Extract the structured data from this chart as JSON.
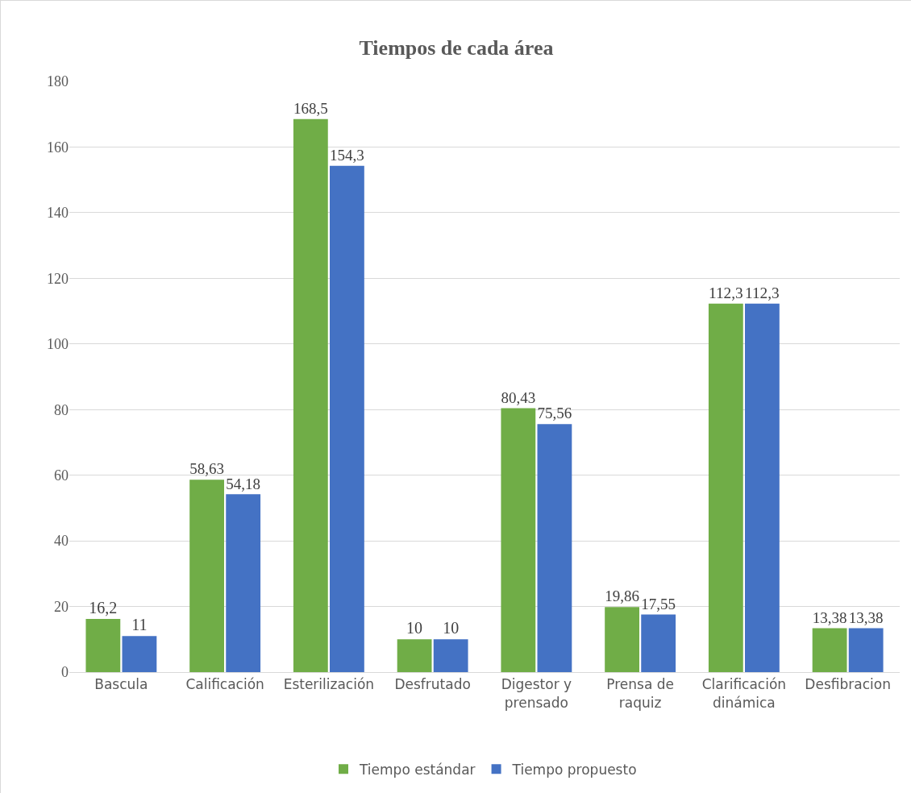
{
  "chart_data": {
    "type": "bar",
    "title": "Tiempos de cada área",
    "categories": [
      "Bascula",
      "Calificación",
      "Esterilización",
      "Desfrutado",
      "Digestor y prensado",
      "Prensa de raquiz",
      "Clarificación dinámica",
      "Desfibracion"
    ],
    "series": [
      {
        "name": "Tiempo estándar",
        "color": "#70ad47",
        "values": [
          16.2,
          58.63,
          168.5,
          10,
          80.43,
          19.86,
          112.3,
          13.38
        ],
        "value_labels": [
          "16,2",
          "58,63",
          "168,5",
          "10",
          "80,43",
          "19,86",
          "112,3",
          "13,38"
        ]
      },
      {
        "name": "Tiempo propuesto",
        "color": "#4472c4",
        "values": [
          11,
          54.18,
          154.3,
          10,
          75.56,
          17.55,
          112.3,
          13.38
        ],
        "value_labels": [
          "11",
          "54,18",
          "154,3",
          "10",
          "75,56",
          "17,55",
          "112,3",
          "13,38"
        ]
      }
    ],
    "ylim": [
      0,
      180
    ],
    "yticks": [
      0,
      20,
      40,
      60,
      80,
      100,
      120,
      140,
      160,
      180
    ],
    "grid": "y",
    "legend": "bottom"
  }
}
